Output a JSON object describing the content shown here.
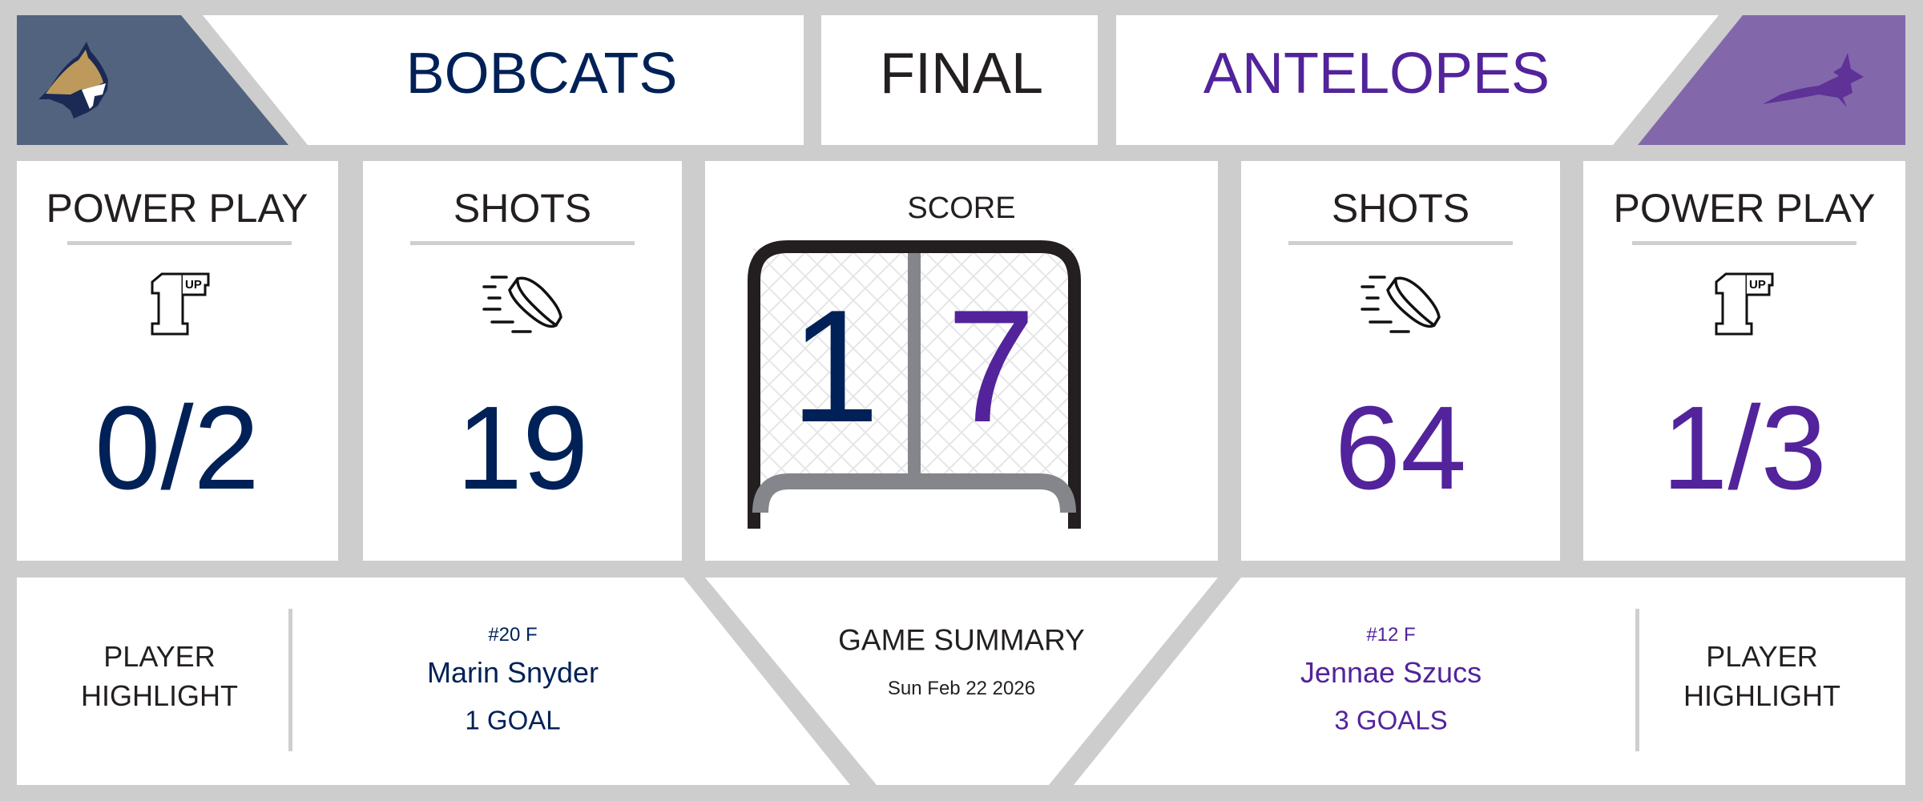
{
  "colors": {
    "home": "#002157",
    "away": "#52239b",
    "home_panel": "#52637f",
    "away_panel": "#8268aa",
    "background": "#cdcdcd"
  },
  "header": {
    "home_team": "BOBCATS",
    "status": "FINAL",
    "away_team": "ANTELOPES",
    "home_logo": "bobcat-logo",
    "away_logo": "antelope-logo"
  },
  "stats": {
    "home_power_play": {
      "label": "POWER PLAY",
      "icon": "1up-icon",
      "value": "0/2"
    },
    "home_shots": {
      "label": "SHOTS",
      "icon": "hockey-puck-icon",
      "value": "19"
    },
    "score": {
      "label": "SCORE",
      "home": "1",
      "away": "7",
      "icon": "hockey-net"
    },
    "away_shots": {
      "label": "SHOTS",
      "icon": "hockey-puck-icon",
      "value": "64"
    },
    "away_power_play": {
      "label": "POWER PLAY",
      "icon": "1up-icon",
      "value": "1/3"
    }
  },
  "footer": {
    "home_highlight_label": [
      "PLAYER",
      "HIGHLIGHT"
    ],
    "home_player": {
      "number_pos": "#20 F",
      "name": "Marin Snyder",
      "stat": "1 GOAL"
    },
    "summary": {
      "title": "GAME SUMMARY",
      "date": "Sun Feb 22 2026"
    },
    "away_player": {
      "number_pos": "#12 F",
      "name": "Jennae Szucs",
      "stat": "3 GOALS"
    },
    "away_highlight_label": [
      "PLAYER",
      "HIGHLIGHT"
    ]
  }
}
